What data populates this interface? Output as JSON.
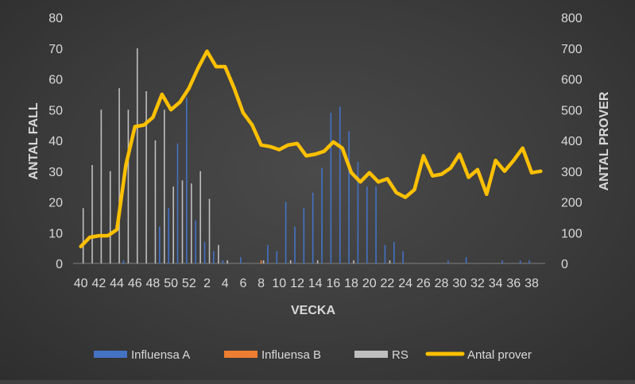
{
  "chart_data": {
    "type": "bar+line",
    "title": "",
    "xlabel": "VECKA",
    "ylabel_left": "ANTAL FALL",
    "ylabel_right": "ANTAL PROVER",
    "ylim_left": [
      0,
      80
    ],
    "ylim_right": [
      0,
      800
    ],
    "left_ticks": [
      "0",
      "10",
      "20",
      "30",
      "40",
      "50",
      "60",
      "70",
      "80"
    ],
    "right_ticks": [
      "0",
      "100",
      "200",
      "300",
      "400",
      "500",
      "600",
      "700",
      "800"
    ],
    "weeks": [
      40,
      41,
      42,
      43,
      44,
      45,
      46,
      47,
      48,
      49,
      50,
      51,
      52,
      1,
      2,
      3,
      4,
      5,
      6,
      7,
      8,
      9,
      10,
      11,
      12,
      13,
      14,
      15,
      16,
      17,
      18,
      19,
      20,
      21,
      22,
      23,
      24,
      25,
      26,
      27,
      28,
      29,
      30,
      31,
      32,
      33,
      34,
      35,
      36,
      37,
      38,
      39
    ],
    "x_tick_labels": [
      "40",
      "42",
      "44",
      "46",
      "48",
      "50",
      "52",
      "2",
      "4",
      "6",
      "8",
      "10",
      "12",
      "14",
      "16",
      "18",
      "20",
      "22",
      "24",
      "26",
      "28",
      "30",
      "32",
      "34",
      "36",
      "38"
    ],
    "series": [
      {
        "name": "Influensa A",
        "type": "bar",
        "axis": "left",
        "color": "#4472c4",
        "values": [
          0,
          0,
          0,
          0,
          0,
          1,
          0,
          0,
          0,
          12,
          18,
          39,
          54,
          14,
          7,
          4,
          1,
          0,
          2,
          0,
          0,
          6,
          4,
          20,
          12,
          18,
          23,
          31,
          49,
          51,
          43,
          33,
          25,
          25,
          6,
          7,
          4,
          0,
          0,
          0,
          0,
          1,
          0,
          2,
          0,
          0,
          0,
          1,
          0,
          1,
          1,
          0
        ]
      },
      {
        "name": "Influensa B",
        "type": "bar",
        "axis": "left",
        "color": "#ed7d31",
        "values": [
          0,
          0,
          0,
          0,
          0,
          0,
          0,
          0,
          0,
          0,
          0,
          0,
          0,
          0,
          0,
          0,
          0,
          0,
          0,
          0,
          1,
          0,
          0,
          0,
          0,
          0,
          0,
          0,
          0,
          0,
          0,
          0,
          0,
          0,
          0,
          0,
          0,
          0,
          0,
          0,
          0,
          0,
          0,
          0,
          0,
          0,
          0,
          0,
          0,
          0,
          0,
          0
        ]
      },
      {
        "name": "RS",
        "type": "bar",
        "axis": "left",
        "color": "#bfbfbf",
        "values": [
          18,
          32,
          50,
          30,
          57,
          50,
          70,
          56,
          40,
          50,
          25,
          27,
          26,
          30,
          21,
          6,
          1,
          0,
          0,
          0,
          1,
          0,
          0,
          1,
          0,
          0,
          1,
          0,
          0,
          0,
          1,
          0,
          0,
          0,
          1,
          0,
          0,
          0,
          0,
          0,
          0,
          0,
          0,
          0,
          0,
          0,
          0,
          0,
          0,
          0,
          0,
          0
        ]
      },
      {
        "name": "Antal prover",
        "type": "line",
        "axis": "right",
        "color": "#ffc000",
        "values": [
          55,
          85,
          90,
          90,
          110,
          320,
          445,
          450,
          475,
          550,
          500,
          525,
          570,
          635,
          690,
          640,
          640,
          570,
          490,
          450,
          385,
          380,
          370,
          385,
          390,
          350,
          355,
          365,
          395,
          375,
          295,
          265,
          295,
          265,
          275,
          230,
          215,
          240,
          350,
          285,
          290,
          310,
          355,
          280,
          305,
          225,
          335,
          300,
          335,
          375,
          295,
          300
        ]
      }
    ],
    "legend": {
      "position": "bottom",
      "entries": [
        "Influensa A",
        "Influensa B",
        "RS",
        "Antal prover"
      ]
    }
  }
}
